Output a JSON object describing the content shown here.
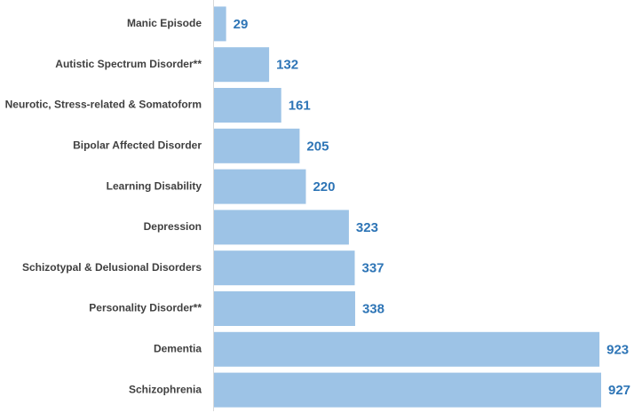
{
  "chart_data": {
    "type": "bar",
    "orientation": "horizontal",
    "categories": [
      "Manic Episode",
      "Autistic Spectrum Disorder**",
      "Neurotic, Stress-related & Somatoform",
      "Bipolar Affected Disorder",
      "Learning Disability",
      "Depression",
      "Schizotypal & Delusional Disorders",
      "Personality Disorder**",
      "Dementia",
      "Schizophrenia"
    ],
    "values": [
      29,
      132,
      161,
      205,
      220,
      323,
      337,
      338,
      923,
      927
    ],
    "value_labels": [
      "29",
      "132",
      "161",
      "205",
      "220",
      "323",
      "337",
      "338",
      "923",
      "927"
    ],
    "title": "",
    "xlabel": "",
    "ylabel": "",
    "xlim": [
      0,
      927
    ],
    "grid": false,
    "legend": "none",
    "bar_color": "#9dc3e6",
    "label_color": "#2e75b6",
    "category_text_color": "#404040"
  }
}
